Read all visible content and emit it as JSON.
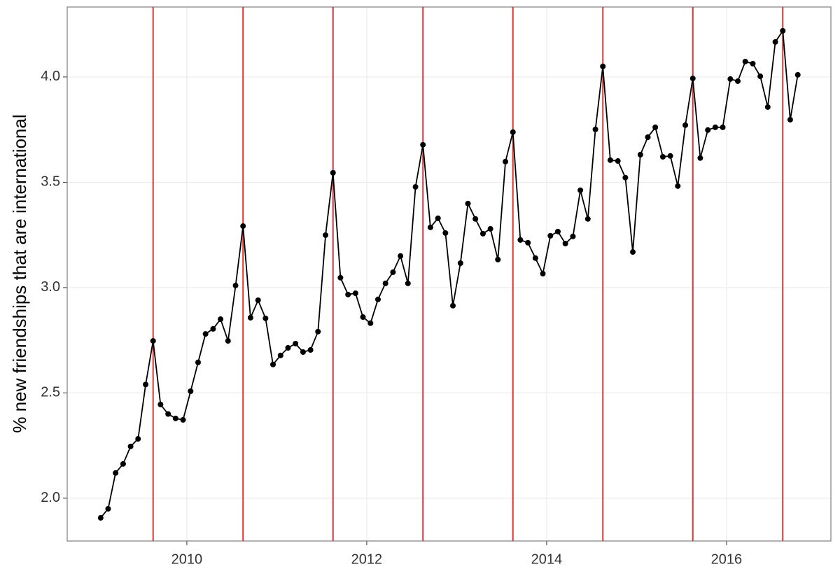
{
  "chart_data": {
    "type": "line",
    "y_label": "% new friendships that are international",
    "x": [
      2009.042,
      2009.125,
      2009.208,
      2009.292,
      2009.375,
      2009.458,
      2009.542,
      2009.625,
      2009.708,
      2009.792,
      2009.875,
      2009.958,
      2010.042,
      2010.125,
      2010.208,
      2010.292,
      2010.375,
      2010.458,
      2010.542,
      2010.625,
      2010.708,
      2010.792,
      2010.875,
      2010.958,
      2011.042,
      2011.125,
      2011.208,
      2011.292,
      2011.375,
      2011.458,
      2011.542,
      2011.625,
      2011.708,
      2011.792,
      2011.875,
      2011.958,
      2012.042,
      2012.125,
      2012.208,
      2012.292,
      2012.375,
      2012.458,
      2012.542,
      2012.625,
      2012.708,
      2012.792,
      2012.875,
      2012.958,
      2013.042,
      2013.125,
      2013.208,
      2013.292,
      2013.375,
      2013.458,
      2013.542,
      2013.625,
      2013.708,
      2013.792,
      2013.875,
      2013.958,
      2014.042,
      2014.125,
      2014.208,
      2014.292,
      2014.375,
      2014.458,
      2014.542,
      2014.625,
      2014.708,
      2014.792,
      2014.875,
      2014.958,
      2015.042,
      2015.125,
      2015.208,
      2015.292,
      2015.375,
      2015.458,
      2015.542,
      2015.625,
      2015.708,
      2015.792,
      2015.875,
      2015.958,
      2016.042,
      2016.125,
      2016.208,
      2016.292,
      2016.375,
      2016.458,
      2016.542,
      2016.625,
      2016.708,
      2016.792
    ],
    "values": [
      1.907,
      1.95,
      2.12,
      2.163,
      2.246,
      2.282,
      2.54,
      2.747,
      2.445,
      2.4,
      2.379,
      2.372,
      2.508,
      2.645,
      2.78,
      2.804,
      2.85,
      2.747,
      3.01,
      3.292,
      2.857,
      2.94,
      2.854,
      2.635,
      2.678,
      2.714,
      2.734,
      2.694,
      2.704,
      2.791,
      3.249,
      3.545,
      3.047,
      2.967,
      2.973,
      2.86,
      2.831,
      2.944,
      3.02,
      3.073,
      3.15,
      3.02,
      3.478,
      3.678,
      3.286,
      3.329,
      3.259,
      2.914,
      3.116,
      3.399,
      3.326,
      3.256,
      3.279,
      3.133,
      3.598,
      3.738,
      3.226,
      3.213,
      3.14,
      3.066,
      3.246,
      3.266,
      3.209,
      3.243,
      3.462,
      3.326,
      3.751,
      4.05,
      3.605,
      3.601,
      3.522,
      3.169,
      3.631,
      3.714,
      3.761,
      3.621,
      3.625,
      3.482,
      3.771,
      3.993,
      3.615,
      3.748,
      3.761,
      3.761,
      3.99,
      3.98,
      4.073,
      4.063,
      4.003,
      3.857,
      4.166,
      4.219,
      3.797,
      4.01
    ],
    "color": "#000000",
    "vlines": [
      2009.625,
      2010.625,
      2011.625,
      2012.625,
      2013.625,
      2014.625,
      2015.625,
      2016.625
    ],
    "vline_color": "#d93636",
    "xlim": [
      2008.67,
      2017.16
    ],
    "xticks": [
      2010,
      2012,
      2014,
      2016
    ],
    "ylim": [
      1.797,
      4.332
    ],
    "yticks": [
      {
        "value": 2,
        "label": "2.0"
      },
      2.5,
      {
        "value": 3,
        "label": "3.0"
      },
      3.5,
      {
        "value": 4,
        "label": "4.0"
      }
    ],
    "grid": true
  }
}
